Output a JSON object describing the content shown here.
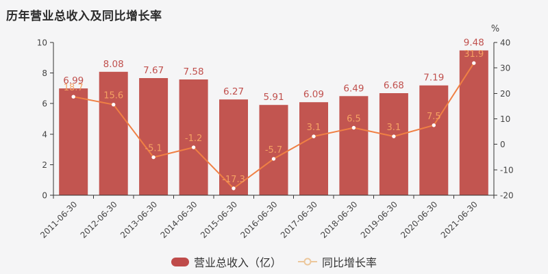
{
  "title": "历年营业总收入及同比增长率",
  "chart_data": {
    "type": "bar",
    "categories": [
      "2011-06-30",
      "2012-06-30",
      "2013-06-30",
      "2014-06-30",
      "2015-06-30",
      "2016-06-30",
      "2017-06-30",
      "2018-06-30",
      "2019-06-30",
      "2020-06-30",
      "2021-06-30"
    ],
    "series": [
      {
        "name": "营业总收入（亿）",
        "type": "bar",
        "axis": "left",
        "color": "#c25550",
        "label_color": "#c0504d",
        "values": [
          6.99,
          8.08,
          7.67,
          7.58,
          6.27,
          5.91,
          6.09,
          6.49,
          6.68,
          7.19,
          9.48
        ]
      },
      {
        "name": "同比增长率",
        "type": "line",
        "axis": "right",
        "color": "#f08044",
        "label_color": "#f5a163",
        "point_fill": "#ffffff",
        "values": [
          18.7,
          15.6,
          -5.1,
          -1.2,
          -17.3,
          -5.7,
          3.1,
          6.5,
          3.1,
          7.5,
          31.9
        ]
      }
    ],
    "left_axis": {
      "min": 0,
      "max": 10,
      "ticks": [
        0,
        2,
        4,
        6,
        8,
        10
      ]
    },
    "right_axis": {
      "min": -20,
      "max": 40,
      "ticks": [
        -20,
        -10,
        0,
        10,
        20,
        30,
        40
      ],
      "unit": "%"
    },
    "legend": {
      "position": "bottom",
      "items": [
        "营业总收入（亿）",
        "同比增长率"
      ]
    },
    "grid": false
  },
  "colors": {
    "background": "#f5f5f6",
    "axis": "#333333",
    "tick_label": "#444444",
    "title": "#2b2b2b",
    "legend_text": "#333333",
    "legend_bar_swatch": "#bf4b4a",
    "legend_line_marker": "#ecc79b"
  }
}
